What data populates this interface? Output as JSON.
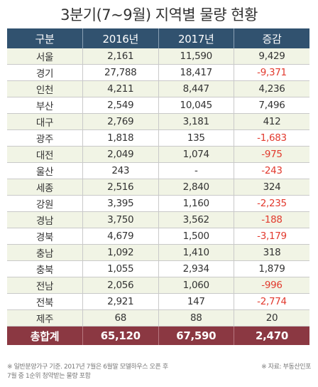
{
  "title": "3분기(7~9월) 지역별 물량 현황",
  "table": {
    "columns": [
      "구분",
      "2016년",
      "2017년",
      "증감"
    ],
    "rows": [
      [
        "서울",
        "2,161",
        "11,590",
        "9,429"
      ],
      [
        "경기",
        "27,788",
        "18,417",
        "-9,371"
      ],
      [
        "인천",
        "4,211",
        "8,447",
        "4,236"
      ],
      [
        "부산",
        "2,549",
        "10,045",
        "7,496"
      ],
      [
        "대구",
        "2,769",
        "3,181",
        "412"
      ],
      [
        "광주",
        "1,818",
        "135",
        "-1,683"
      ],
      [
        "대전",
        "2,049",
        "1,074",
        "-975"
      ],
      [
        "울산",
        "243",
        "-",
        "-243"
      ],
      [
        "세종",
        "2,516",
        "2,840",
        "324"
      ],
      [
        "강원",
        "3,395",
        "1,160",
        "-2,235"
      ],
      [
        "경남",
        "3,750",
        "3,562",
        "-188"
      ],
      [
        "경북",
        "4,679",
        "1,500",
        "-3,179"
      ],
      [
        "충남",
        "1,092",
        "1,410",
        "318"
      ],
      [
        "충북",
        "1,055",
        "2,934",
        "1,879"
      ],
      [
        "전남",
        "2,056",
        "1,060",
        "-996"
      ],
      [
        "전북",
        "2,921",
        "147",
        "-2,774"
      ],
      [
        "제주",
        "68",
        "88",
        "20"
      ]
    ],
    "total": [
      "총합계",
      "65,120",
      "67,590",
      "2,470"
    ]
  },
  "note_lines": [
    "※ 일반분양가구 기준. 2017년 7월은 6월말 모델하우스 오픈 후",
    "7월 중 1순위 청약받는 물량 포함"
  ],
  "source": "※ 자료: 부동산인포",
  "colors": {
    "header_bg": "#31526f",
    "total_bg": "#8b3842",
    "stripe_bg": "#f1f4e5",
    "negative_text": "#e23a2e"
  }
}
